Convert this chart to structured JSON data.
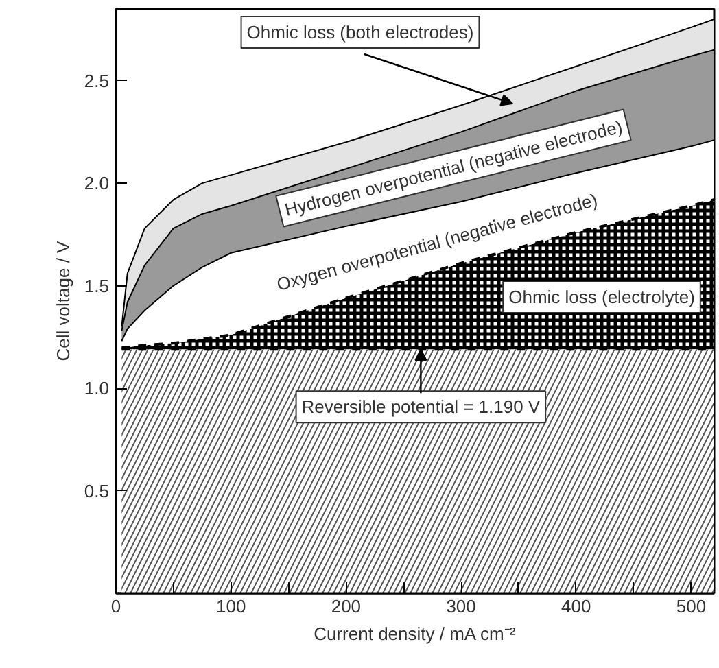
{
  "chart_data": {
    "type": "area",
    "stacked": true,
    "xlabel": "Current density / mA cm⁻²",
    "ylabel": "Cell voltage / V",
    "x": [
      5,
      10,
      25,
      50,
      75,
      100,
      200,
      300,
      400,
      500,
      520
    ],
    "series": [
      {
        "color": "#555555",
        "values": [
          1.19,
          1.19,
          1.19,
          1.19,
          1.19,
          1.19,
          1.19,
          1.19,
          1.19,
          1.19,
          1.19
        ]
      },
      {
        "color": "#000000",
        "values": [
          0.01,
          0.01,
          0.02,
          0.03,
          0.05,
          0.07,
          0.25,
          0.42,
          0.57,
          0.7,
          0.73
        ]
      },
      {
        "color": "#ffffff",
        "values": [
          0.03,
          0.09,
          0.17,
          0.28,
          0.35,
          0.4,
          0.35,
          0.3,
          0.29,
          0.29,
          0.29
        ]
      },
      {
        "color": "#9a9a9a",
        "values": [
          0.05,
          0.13,
          0.22,
          0.28,
          0.26,
          0.23,
          0.28,
          0.34,
          0.4,
          0.44,
          0.44
        ]
      },
      {
        "color": "#e4e4e4",
        "values": [
          0.02,
          0.14,
          0.18,
          0.14,
          0.15,
          0.15,
          0.13,
          0.13,
          0.12,
          0.14,
          0.15
        ]
      }
    ],
    "annotations": [
      "Ohmic loss (both electrodes)",
      "Hydrogen overpotential (negative electrode)",
      "Oxygen overpotential (negative electrode)",
      "Ohmic loss (electrolyte)",
      {
        "text": "Reversible potential = 1.190 V",
        "x": 265,
        "y": 1.19
      }
    ],
    "xlim": [
      0,
      520
    ],
    "ylim": [
      0,
      2.85
    ],
    "xticks": [
      0,
      {
        "value": 50,
        "label": null
      },
      100,
      {
        "value": 150,
        "label": null
      },
      200,
      {
        "value": 250,
        "label": null
      },
      300,
      {
        "value": 350,
        "label": null
      },
      400,
      {
        "value": 450,
        "label": null
      },
      500
    ],
    "yticks": [
      0.5,
      {
        "value": 1,
        "label": "1.0"
      },
      1.5,
      {
        "value": 2,
        "label": "2.0"
      },
      2.5
    ],
    "grid": false
  }
}
